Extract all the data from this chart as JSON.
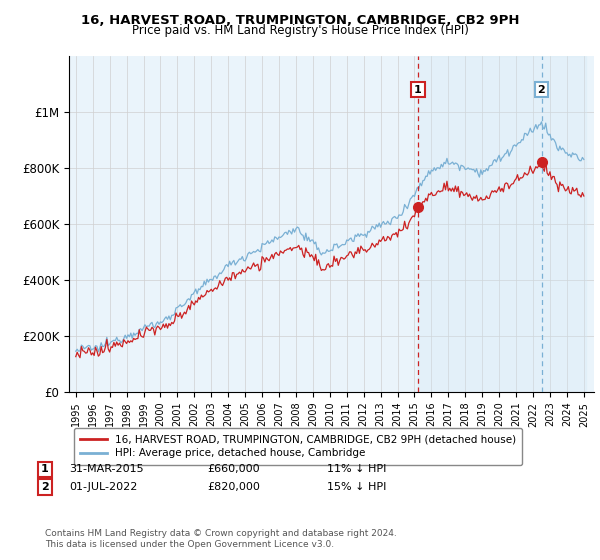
{
  "title1": "16, HARVEST ROAD, TRUMPINGTON, CAMBRIDGE, CB2 9PH",
  "title2": "Price paid vs. HM Land Registry's House Price Index (HPI)",
  "ylim": [
    0,
    1200000
  ],
  "yticks": [
    0,
    200000,
    400000,
    600000,
    800000,
    1000000
  ],
  "ytick_labels": [
    "£0",
    "£200K",
    "£400K",
    "£600K",
    "£800K",
    "£1M"
  ],
  "hpi_color": "#7ab0d4",
  "hpi_fill_color": "#d0e8f5",
  "price_color": "#cc2222",
  "vline1_color": "#cc2222",
  "vline2_color": "#7ab0d4",
  "sale1_year": 2015.21,
  "sale2_year": 2022.5,
  "sale1_price": 660000,
  "sale2_price": 820000,
  "sale1_label": "31-MAR-2015",
  "sale1_price_str": "£660,000",
  "sale1_pct": "11% ↓ HPI",
  "sale2_label": "01-JUL-2022",
  "sale2_price_str": "£820,000",
  "sale2_pct": "15% ↓ HPI",
  "footnote": "Contains HM Land Registry data © Crown copyright and database right 2024.\nThis data is licensed under the Open Government Licence v3.0.",
  "legend_line1": "16, HARVEST ROAD, TRUMPINGTON, CAMBRIDGE, CB2 9PH (detached house)",
  "legend_line2": "HPI: Average price, detached house, Cambridge",
  "background_color": "#eaf4fb"
}
